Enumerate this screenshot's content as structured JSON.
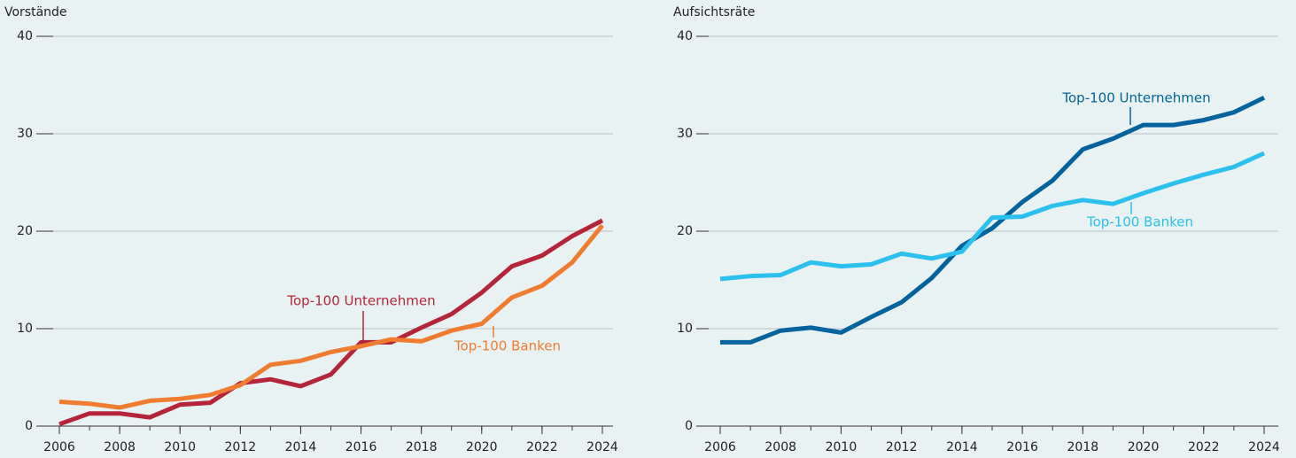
{
  "chart_data": [
    {
      "type": "line",
      "title": "Vorstände",
      "x": [
        2006,
        2007,
        2008,
        2009,
        2010,
        2011,
        2012,
        2013,
        2014,
        2015,
        2016,
        2017,
        2018,
        2019,
        2020,
        2021,
        2022,
        2023,
        2024
      ],
      "xlim": [
        2006,
        2024
      ],
      "xticks": [
        2006,
        2008,
        2010,
        2012,
        2014,
        2016,
        2018,
        2020,
        2022,
        2024
      ],
      "ylim": [
        0,
        40
      ],
      "yticks": [
        0,
        10,
        20,
        30,
        40
      ],
      "grid": true,
      "series": [
        {
          "name": "Top-100 Unternehmen",
          "color": "#b5253a",
          "values": [
            0.2,
            1.3,
            1.3,
            0.9,
            2.2,
            2.4,
            4.4,
            4.8,
            4.1,
            5.3,
            8.6,
            8.6,
            10.1,
            11.5,
            13.7,
            16.4,
            17.5,
            19.5,
            21.1
          ]
        },
        {
          "name": "Top-100 Banken",
          "color": "#f07c30",
          "values": [
            2.5,
            2.3,
            1.9,
            2.6,
            2.8,
            3.2,
            4.2,
            6.3,
            6.7,
            7.6,
            8.2,
            8.9,
            8.7,
            9.8,
            10.5,
            13.2,
            14.4,
            16.8,
            20.6
          ]
        }
      ]
    },
    {
      "type": "line",
      "title": "Aufsichtsräte",
      "x": [
        2006,
        2007,
        2008,
        2009,
        2010,
        2011,
        2012,
        2013,
        2014,
        2015,
        2016,
        2017,
        2018,
        2019,
        2020,
        2021,
        2022,
        2023,
        2024
      ],
      "xlim": [
        2006,
        2024
      ],
      "xticks": [
        2006,
        2008,
        2010,
        2012,
        2014,
        2016,
        2018,
        2020,
        2022,
        2024
      ],
      "ylim": [
        0,
        40
      ],
      "yticks": [
        0,
        10,
        20,
        30,
        40
      ],
      "grid": true,
      "series": [
        {
          "name": "Top-100 Unternehmen",
          "color": "#00639e",
          "values": [
            8.6,
            8.6,
            9.8,
            10.1,
            9.6,
            11.2,
            12.7,
            15.2,
            18.5,
            20.3,
            23.0,
            25.2,
            28.4,
            29.5,
            30.9,
            30.9,
            31.4,
            32.2,
            33.7
          ]
        },
        {
          "name": "Top-100 Banken",
          "color": "#2cc0ee",
          "values": [
            15.1,
            15.4,
            15.5,
            16.8,
            16.4,
            16.6,
            17.7,
            17.2,
            17.9,
            21.4,
            21.5,
            22.6,
            23.2,
            22.8,
            23.9,
            24.9,
            25.8,
            26.6,
            28.0
          ]
        }
      ]
    }
  ]
}
